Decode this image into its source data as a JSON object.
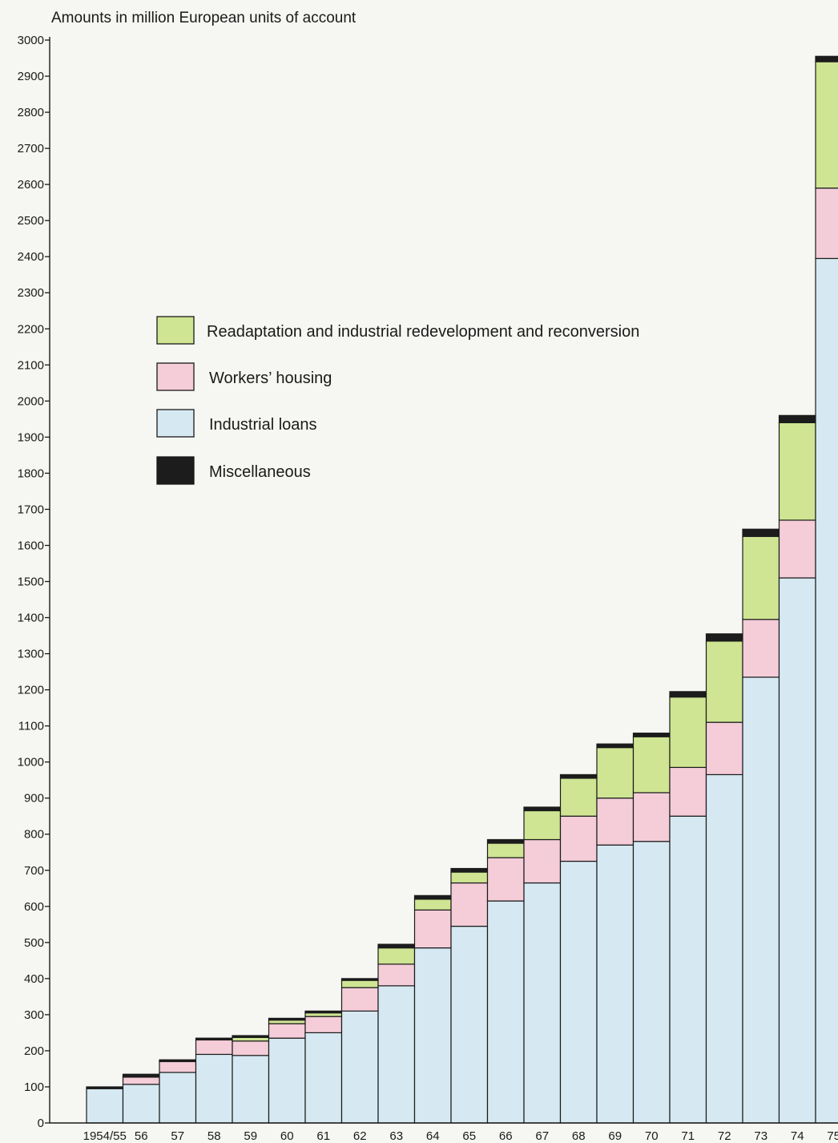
{
  "chart_data": {
    "type": "bar",
    "stacked": true,
    "title": "",
    "ylabel": "Amounts in million European units of account",
    "xlabel": "",
    "ylim": [
      0,
      3000
    ],
    "y_ticks": [
      0,
      100,
      200,
      300,
      400,
      500,
      600,
      700,
      800,
      900,
      1000,
      1100,
      1200,
      1300,
      1400,
      1500,
      1600,
      1700,
      1800,
      1900,
      2000,
      2100,
      2200,
      2300,
      2400,
      2500,
      2600,
      2700,
      2800,
      2900,
      3000
    ],
    "grid": false,
    "legend_position": "upper-left",
    "categories": [
      "1954/55",
      "56",
      "57",
      "58",
      "59",
      "60",
      "61",
      "62",
      "63",
      "64",
      "65",
      "66",
      "67",
      "68",
      "69",
      "70",
      "71",
      "72",
      "73",
      "74",
      "75"
    ],
    "series": [
      {
        "name": "Industrial loans",
        "color": "#d6e9f2",
        "values": [
          95,
          107,
          140,
          190,
          187,
          235,
          250,
          310,
          380,
          485,
          545,
          615,
          665,
          725,
          770,
          780,
          850,
          965,
          1235,
          1510,
          2395
        ]
      },
      {
        "name": "Workers' housing",
        "color": "#f4cdd8",
        "values": [
          0,
          20,
          30,
          40,
          40,
          40,
          45,
          65,
          60,
          105,
          120,
          120,
          120,
          125,
          130,
          135,
          135,
          145,
          160,
          160,
          195
        ]
      },
      {
        "name": "Readaptation and industrial redevelopment and reconversion",
        "color": "#cfe593",
        "values": [
          0,
          0,
          0,
          0,
          10,
          10,
          10,
          20,
          45,
          30,
          30,
          40,
          80,
          105,
          140,
          155,
          195,
          225,
          230,
          270,
          350
        ]
      },
      {
        "name": "Miscellaneous",
        "color": "#1c1c1c",
        "values": [
          5,
          8,
          5,
          5,
          5,
          5,
          5,
          5,
          10,
          10,
          10,
          10,
          10,
          10,
          10,
          10,
          15,
          20,
          20,
          20,
          15
        ]
      }
    ],
    "legend": [
      {
        "label": "Readaptation and industrial redevelopment and reconversion",
        "color": "#cfe593"
      },
      {
        "label": "Workers’ housing",
        "color": "#f4cdd8"
      },
      {
        "label": "Industrial loans",
        "color": "#d6e9f2"
      },
      {
        "label": "Miscellaneous",
        "color": "#1c1c1c"
      }
    ]
  }
}
